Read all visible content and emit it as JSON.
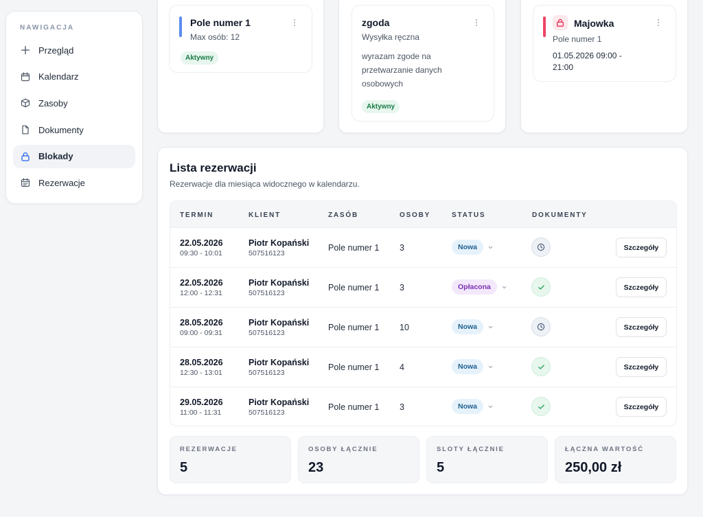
{
  "sidebar": {
    "title": "NAWIGACJA",
    "items": [
      {
        "label": "Przegląd"
      },
      {
        "label": "Kalendarz"
      },
      {
        "label": "Zasoby"
      },
      {
        "label": "Dokumenty"
      },
      {
        "label": "Blokady"
      },
      {
        "label": "Rezerwacje"
      }
    ],
    "active_item": "Blokady"
  },
  "resource_card": {
    "title": "Pole numer 1",
    "subtitle": "Max osób: 12",
    "badge": "Aktywny",
    "accent_color": "#5b8def"
  },
  "consent_card": {
    "title": "zgoda",
    "subtitle": "Wysyłka ręczna",
    "body": "wyrazam zgode na przetwarzanie danych osobowych",
    "badge": "Aktywny"
  },
  "block_card": {
    "title": "Majowka",
    "resource": "Pole numer 1",
    "range": "01.05.2026 09:00 - 21:00",
    "accent_color": "#ef4466"
  },
  "reservations": {
    "title": "Lista rezerwacji",
    "subtitle": "Rezerwacje dla miesiąca widocznego w kalendarzu.",
    "columns": [
      "TERMIN",
      "KLIENT",
      "ZASÓB",
      "OSOBY",
      "STATUS",
      "DOKUMENTY"
    ],
    "details_label": "Szczegóły",
    "rows": [
      {
        "date": "22.05.2026",
        "time": "09:30 - 10:01",
        "client": "Piotr Kopański",
        "phone": "507516123",
        "resource": "Pole numer 1",
        "persons": "3",
        "status": "Nowa",
        "status_kind": "new",
        "documents": "pending"
      },
      {
        "date": "22.05.2026",
        "time": "12:00 - 12:31",
        "client": "Piotr Kopański",
        "phone": "507516123",
        "resource": "Pole numer 1",
        "persons": "3",
        "status": "Opłacona",
        "status_kind": "paid",
        "documents": "done"
      },
      {
        "date": "28.05.2026",
        "time": "09:00 - 09:31",
        "client": "Piotr Kopański",
        "phone": "507516123",
        "resource": "Pole numer 1",
        "persons": "10",
        "status": "Nowa",
        "status_kind": "new",
        "documents": "pending"
      },
      {
        "date": "28.05.2026",
        "time": "12:30 - 13:01",
        "client": "Piotr Kopański",
        "phone": "507516123",
        "resource": "Pole numer 1",
        "persons": "4",
        "status": "Nowa",
        "status_kind": "new",
        "documents": "done"
      },
      {
        "date": "29.05.2026",
        "time": "11:00 - 11:31",
        "client": "Piotr Kopański",
        "phone": "507516123",
        "resource": "Pole numer 1",
        "persons": "3",
        "status": "Nowa",
        "status_kind": "new",
        "documents": "done"
      }
    ]
  },
  "stats": [
    {
      "label": "REZERWACJE",
      "value": "5"
    },
    {
      "label": "OSOBY ŁĄCZNIE",
      "value": "23"
    },
    {
      "label": "SLOTY ŁĄCZNIE",
      "value": "5"
    },
    {
      "label": "ŁĄCZNA WARTOŚĆ",
      "value": "250,00 zł"
    }
  ],
  "colors": {
    "status_new_bg": "#e6f2fb",
    "status_new_fg": "#1f5f8f",
    "status_paid_bg": "#f3e8fb",
    "status_paid_fg": "#7b2fb0",
    "doc_pending_bg": "#eef1f6",
    "doc_done_bg": "#e8f7ee"
  }
}
